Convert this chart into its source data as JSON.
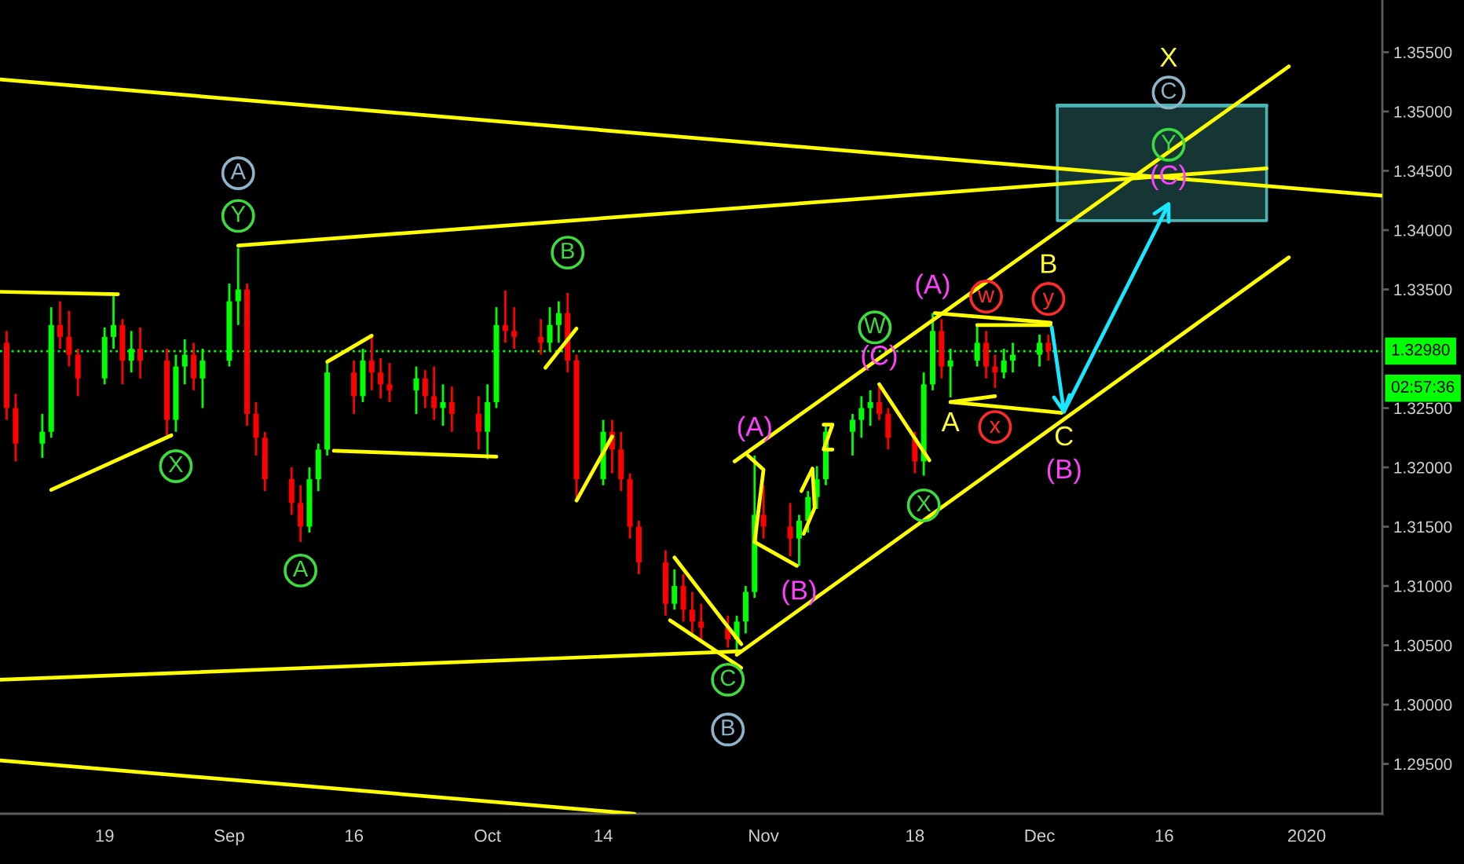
{
  "chart_data": {
    "type": "candlestick",
    "x": [
      "2019-08-08",
      "2019-08-09",
      "2019-08-12",
      "2019-08-13",
      "2019-08-14",
      "2019-08-15",
      "2019-08-16",
      "2019-08-19",
      "2019-08-20",
      "2019-08-21",
      "2019-08-22",
      "2019-08-23",
      "2019-08-26",
      "2019-08-27",
      "2019-08-28",
      "2019-08-29",
      "2019-08-30",
      "2019-09-02",
      "2019-09-03",
      "2019-09-04",
      "2019-09-05",
      "2019-09-06",
      "2019-09-09",
      "2019-09-10",
      "2019-09-11",
      "2019-09-12",
      "2019-09-13",
      "2019-09-16",
      "2019-09-17",
      "2019-09-18",
      "2019-09-19",
      "2019-09-20",
      "2019-09-23",
      "2019-09-24",
      "2019-09-25",
      "2019-09-26",
      "2019-09-27",
      "2019-09-30",
      "2019-10-01",
      "2019-10-02",
      "2019-10-03",
      "2019-10-04",
      "2019-10-07",
      "2019-10-08",
      "2019-10-09",
      "2019-10-10",
      "2019-10-11",
      "2019-10-14",
      "2019-10-15",
      "2019-10-16",
      "2019-10-17",
      "2019-10-18",
      "2019-10-21",
      "2019-10-22",
      "2019-10-23",
      "2019-10-24",
      "2019-10-25",
      "2019-10-28",
      "2019-10-29",
      "2019-10-30",
      "2019-10-31",
      "2019-11-01",
      "2019-11-04",
      "2019-11-05",
      "2019-11-06",
      "2019-11-07",
      "2019-11-08",
      "2019-11-11",
      "2019-11-12",
      "2019-11-13",
      "2019-11-14",
      "2019-11-15",
      "2019-11-18",
      "2019-11-19",
      "2019-11-20",
      "2019-11-21",
      "2019-11-22",
      "2019-11-25",
      "2019-11-26",
      "2019-11-27",
      "2019-11-28",
      "2019-11-29",
      "2019-12-02",
      "2019-12-03"
    ],
    "ohlc": [
      [
        1.3305,
        1.3315,
        1.324,
        1.325
      ],
      [
        1.325,
        1.3262,
        1.3205,
        1.322
      ],
      [
        1.322,
        1.3245,
        1.3208,
        1.323
      ],
      [
        1.323,
        1.3335,
        1.3225,
        1.332
      ],
      [
        1.332,
        1.334,
        1.33,
        1.331
      ],
      [
        1.331,
        1.3332,
        1.3285,
        1.3295
      ],
      [
        1.3295,
        1.33,
        1.326,
        1.3275
      ],
      [
        1.3275,
        1.3318,
        1.327,
        1.331
      ],
      [
        1.331,
        1.3345,
        1.33,
        1.332
      ],
      [
        1.332,
        1.3325,
        1.327,
        1.329
      ],
      [
        1.329,
        1.3315,
        1.328,
        1.33
      ],
      [
        1.33,
        1.3318,
        1.3275,
        1.329
      ],
      [
        1.329,
        1.33,
        1.3227,
        1.324
      ],
      [
        1.324,
        1.3295,
        1.323,
        1.3285
      ],
      [
        1.3285,
        1.3308,
        1.327,
        1.3295
      ],
      [
        1.3295,
        1.3305,
        1.3265,
        1.3275
      ],
      [
        1.3275,
        1.33,
        1.325,
        1.329
      ],
      [
        1.329,
        1.3355,
        1.3285,
        1.334
      ],
      [
        1.334,
        1.3385,
        1.332,
        1.335
      ],
      [
        1.335,
        1.3355,
        1.3235,
        1.3245
      ],
      [
        1.3245,
        1.3255,
        1.321,
        1.3225
      ],
      [
        1.3225,
        1.323,
        1.318,
        1.319
      ],
      [
        1.319,
        1.32,
        1.316,
        1.317
      ],
      [
        1.317,
        1.3185,
        1.3137,
        1.315
      ],
      [
        1.315,
        1.32,
        1.3145,
        1.319
      ],
      [
        1.319,
        1.322,
        1.318,
        1.3215
      ],
      [
        1.3215,
        1.329,
        1.321,
        1.328
      ],
      [
        1.328,
        1.329,
        1.3245,
        1.326
      ],
      [
        1.326,
        1.33,
        1.3255,
        1.329
      ],
      [
        1.329,
        1.331,
        1.3265,
        1.328
      ],
      [
        1.328,
        1.3292,
        1.3258,
        1.327
      ],
      [
        1.327,
        1.3288,
        1.3255,
        1.3265
      ],
      [
        1.3265,
        1.3285,
        1.3245,
        1.3275
      ],
      [
        1.3275,
        1.3282,
        1.325,
        1.326
      ],
      [
        1.326,
        1.3285,
        1.324,
        1.325
      ],
      [
        1.325,
        1.327,
        1.3235,
        1.3255
      ],
      [
        1.3255,
        1.3268,
        1.323,
        1.3245
      ],
      [
        1.3245,
        1.326,
        1.3215,
        1.323
      ],
      [
        1.323,
        1.327,
        1.3207,
        1.3255
      ],
      [
        1.3255,
        1.3335,
        1.325,
        1.332
      ],
      [
        1.332,
        1.3349,
        1.3305,
        1.3315
      ],
      [
        1.3315,
        1.3335,
        1.33,
        1.331
      ],
      [
        1.331,
        1.3325,
        1.3295,
        1.3305
      ],
      [
        1.3305,
        1.3335,
        1.3298,
        1.332
      ],
      [
        1.332,
        1.334,
        1.3305,
        1.333
      ],
      [
        1.333,
        1.3347,
        1.328,
        1.329
      ],
      [
        1.329,
        1.3295,
        1.3174,
        1.319
      ],
      [
        1.319,
        1.324,
        1.3185,
        1.323
      ],
      [
        1.323,
        1.324,
        1.3195,
        1.3215
      ],
      [
        1.3215,
        1.323,
        1.318,
        1.319
      ],
      [
        1.319,
        1.3195,
        1.314,
        1.315
      ],
      [
        1.315,
        1.3155,
        1.311,
        1.312
      ],
      [
        1.312,
        1.313,
        1.3075,
        1.3085
      ],
      [
        1.3085,
        1.3114,
        1.308,
        1.31
      ],
      [
        1.31,
        1.311,
        1.307,
        1.308
      ],
      [
        1.308,
        1.3095,
        1.306,
        1.307
      ],
      [
        1.307,
        1.3085,
        1.3055,
        1.3065
      ],
      [
        1.3065,
        1.3075,
        1.3048,
        1.3055
      ],
      [
        1.3055,
        1.3075,
        1.3045,
        1.307
      ],
      [
        1.307,
        1.31,
        1.306,
        1.3095
      ],
      [
        1.3095,
        1.321,
        1.309,
        1.316
      ],
      [
        1.316,
        1.3185,
        1.314,
        1.315
      ],
      [
        1.315,
        1.317,
        1.3125,
        1.314
      ],
      [
        1.314,
        1.316,
        1.3117,
        1.3155
      ],
      [
        1.3155,
        1.318,
        1.3145,
        1.3175
      ],
      [
        1.3175,
        1.3201,
        1.3165,
        1.319
      ],
      [
        1.319,
        1.3235,
        1.3185,
        1.323
      ],
      [
        1.323,
        1.3245,
        1.321,
        1.324
      ],
      [
        1.324,
        1.326,
        1.3225,
        1.325
      ],
      [
        1.325,
        1.3265,
        1.3235,
        1.3255
      ],
      [
        1.3255,
        1.327,
        1.324,
        1.3245
      ],
      [
        1.3245,
        1.325,
        1.3215,
        1.3225
      ],
      [
        1.3225,
        1.323,
        1.3195,
        1.3205
      ],
      [
        1.3205,
        1.328,
        1.3193,
        1.327
      ],
      [
        1.327,
        1.333,
        1.3265,
        1.3315
      ],
      [
        1.3315,
        1.3325,
        1.3275,
        1.3285
      ],
      [
        1.3285,
        1.33,
        1.3259,
        1.329
      ],
      [
        1.329,
        1.332,
        1.3285,
        1.3305
      ],
      [
        1.3305,
        1.3315,
        1.3275,
        1.3285
      ],
      [
        1.3285,
        1.3295,
        1.3267,
        1.328
      ],
      [
        1.328,
        1.33,
        1.3275,
        1.329
      ],
      [
        1.329,
        1.3305,
        1.328,
        1.3295
      ],
      [
        1.3295,
        1.3312,
        1.3285,
        1.3305
      ],
      [
        1.3305,
        1.3312,
        1.329,
        1.3298
      ]
    ],
    "colors": [
      "#ff0000",
      "#ff0000",
      "#00ff00",
      "#00ff00",
      "#ff0000",
      "#ff0000",
      "#ff0000",
      "#00ff00",
      "#00ff00",
      "#ff0000",
      "#00ff00",
      "#ff0000",
      "#ff0000",
      "#00ff00",
      "#00ff00",
      "#ff0000",
      "#00ff00",
      "#00ff00",
      "#00ff00",
      "#ff0000",
      "#ff0000",
      "#ff0000",
      "#ff0000",
      "#ff0000",
      "#00ff00",
      "#00ff00",
      "#00ff00",
      "#ff0000",
      "#00ff00",
      "#ff0000",
      "#ff0000",
      "#ff0000",
      "#00ff00",
      "#ff0000",
      "#ff0000",
      "#00ff00",
      "#ff0000",
      "#ff0000",
      "#00ff00",
      "#00ff00",
      "#ff0000",
      "#ff0000",
      "#ff0000",
      "#00ff00",
      "#00ff00",
      "#ff0000",
      "#ff0000",
      "#00ff00",
      "#ff0000",
      "#ff0000",
      "#ff0000",
      "#ff0000",
      "#ff0000",
      "#00ff00",
      "#ff0000",
      "#ff0000",
      "#ff0000",
      "#ff0000",
      "#00ff00",
      "#00ff00",
      "#00ff00",
      "#ff0000",
      "#ff0000",
      "#00ff00",
      "#00ff00",
      "#00ff00",
      "#00ff00",
      "#00ff00",
      "#00ff00",
      "#00ff00",
      "#ff0000",
      "#ff0000",
      "#ff0000",
      "#00ff00",
      "#00ff00",
      "#ff0000",
      "#00ff00",
      "#00ff00",
      "#ff0000",
      "#ff0000",
      "#00ff00",
      "#00ff00",
      "#00ff00",
      "#ff0000"
    ],
    "series": [
      {
        "type": "line",
        "color": "#48b4b4",
        "x": [
          "2019-12-04",
          "2019-12-27T12:00"
        ],
        "values": [
          1.3505,
          1.3505
        ],
        "lower": [
          1.3408,
          1.3408
        ],
        "upper": [
          1.3505,
          1.3505
        ]
      },
      {
        "type": "line",
        "color": "#ffff00",
        "x": [
          "2019-08-07T06:00",
          "2020-01-09T12:00"
        ],
        "values": [
          1.3527,
          1.3429
        ]
      },
      {
        "type": "line",
        "color": "#ffff00",
        "x": [
          "2019-09-03",
          "2019-12-27T12:00"
        ],
        "values": [
          1.3387,
          1.3452
        ]
      },
      {
        "type": "line",
        "color": "#ffff00",
        "x": [
          "2019-10-28T18:00",
          "2019-12-30"
        ],
        "values": [
          1.3205,
          1.3538
        ]
      },
      {
        "type": "line",
        "color": "#ffff00",
        "x": [
          "2019-10-29",
          "2019-12-30"
        ],
        "values": [
          1.3042,
          1.3377
        ]
      },
      {
        "type": "line",
        "color": "#ffff00",
        "x": [
          "2019-08-07T06:00",
          "2019-10-29T12:00"
        ],
        "values": [
          1.3021,
          1.3045
        ]
      },
      {
        "type": "line",
        "color": "#ffff00",
        "x": [
          "2019-08-07T06:00",
          "2019-10-17T12:00"
        ],
        "values": [
          1.2953,
          1.2908
        ]
      },
      {
        "type": "line",
        "color": "#ffff00",
        "x": [
          "2019-08-07T06:00",
          "2019-08-20T12:00"
        ],
        "values": [
          1.3348,
          1.3346
        ]
      },
      {
        "type": "line",
        "color": "#ffff00",
        "x": [
          "2019-08-13",
          "2019-08-26T12:00"
        ],
        "values": [
          1.3181,
          1.3227
        ]
      },
      {
        "type": "line",
        "color": "#ffff00",
        "x": [
          "2019-09-13",
          "2019-09-18"
        ],
        "values": [
          1.3289,
          1.3311
        ]
      },
      {
        "type": "line",
        "color": "#ffff00",
        "x": [
          "2019-09-13T18:00",
          "2019-10-02"
        ],
        "values": [
          1.3214,
          1.3209
        ]
      },
      {
        "type": "line",
        "color": "#ffff00",
        "x": [
          "2019-10-07T12:00",
          "2019-10-11"
        ],
        "values": [
          1.3284,
          1.3317
        ]
      },
      {
        "type": "line",
        "color": "#ffff00",
        "x": [
          "2019-10-11",
          "2019-10-15"
        ],
        "values": [
          1.3172,
          1.3226
        ]
      },
      {
        "type": "line",
        "color": "#ffff00",
        "x": [
          "2019-10-22",
          "2019-10-29T12:00"
        ],
        "values": [
          1.3124,
          1.3051
        ]
      },
      {
        "type": "line",
        "color": "#ffff00",
        "x": [
          "2019-10-21T12:00",
          "2019-10-29T12:00"
        ],
        "values": [
          1.3071,
          1.3031
        ]
      },
      {
        "type": "line",
        "color": "#ffff00",
        "x": [
          "2019-10-30T06:00",
          "2019-11-01",
          "2019-10-31",
          "2019-11-04T18:00"
        ],
        "values": [
          1.321,
          1.3198,
          1.3137,
          1.3117
        ]
      },
      {
        "type": "line",
        "color": "#ffff00",
        "x": [
          "2019-11-05T06:00",
          "2019-11-06T12:00",
          "2019-11-06T18:00",
          "2019-11-05T12:00"
        ],
        "values": [
          1.318,
          1.3199,
          1.3166,
          1.3144
        ]
      },
      {
        "type": "line",
        "color": "#ffff00",
        "x": [
          "2019-11-07T18:00",
          "2019-11-08T18:00",
          "2019-11-07T18:00",
          "2019-11-08T18:00"
        ],
        "values": [
          1.3236,
          1.3236,
          1.3215,
          1.3215
        ]
      },
      {
        "type": "line",
        "color": "#ffff00",
        "x": [
          "2019-11-14",
          "2019-11-19T15:00"
        ],
        "values": [
          1.327,
          1.3206
        ]
      },
      {
        "type": "line",
        "color": "#ffff00",
        "x": [
          "2019-11-20T06:00",
          "2019-12-03T06:00"
        ],
        "values": [
          1.333,
          1.3322
        ]
      },
      {
        "type": "line",
        "color": "#ffff00",
        "x": [
          "2019-11-25",
          "2019-12-03T06:00"
        ],
        "values": [
          1.332,
          1.332
        ]
      },
      {
        "type": "line",
        "color": "#ffff00",
        "x": [
          "2019-11-22",
          "2019-12-04T12:00"
        ],
        "values": [
          1.3255,
          1.3246
        ]
      },
      {
        "type": "line",
        "color": "#ffff00",
        "x": [
          "2019-11-22",
          "2019-11-27"
        ],
        "values": [
          1.3255,
          1.326
        ]
      },
      {
        "type": "line",
        "color": "#18e8ff",
        "x": [
          "2019-12-03T09:00",
          "2019-12-04T18:00",
          "2019-12-03T15:00",
          "2019-12-04T18:00",
          "2019-12-05T09:00"
        ],
        "values": [
          1.3318,
          1.3247,
          1.3259,
          1.3247,
          1.3261
        ]
      },
      {
        "type": "line",
        "color": "#18e8ff",
        "x": [
          "2019-12-04T18:00",
          "2019-12-16T12:00",
          "2019-12-16T12:00",
          "2019-12-16T12:00",
          "2019-12-14T22:00"
        ],
        "values": [
          1.3247,
          1.3422,
          1.3407,
          1.3422,
          1.3414
        ]
      },
      {
        "type": "scatter",
        "color": "#3ddc3d",
        "marker": "circle",
        "x": [
          "2019-08-27",
          "2019-09-03",
          "2019-09-10",
          "2019-10-10",
          "2019-10-28",
          "2019-11-13T12:00",
          "2019-11-19",
          "2019-12-16T12:00"
        ],
        "values": [
          1.3201,
          1.3412,
          1.3113,
          1.3381,
          1.3021,
          1.3318,
          1.3168,
          1.3472
        ],
        "value_labels": [
          "X",
          "Y",
          "A",
          "B",
          "C",
          "W",
          "X",
          "Y"
        ]
      },
      {
        "type": "scatter",
        "color": "#8fb3c9",
        "marker": "circle",
        "x": [
          "2019-09-03",
          "2019-10-28",
          "2019-12-16T12:00"
        ],
        "values": [
          1.3448,
          1.2979,
          1.3516
        ],
        "value_labels": [
          "A",
          "B",
          "C"
        ]
      },
      {
        "type": "scatter",
        "color": "#ff2a2a",
        "marker": "circle",
        "x": [
          "2019-11-26",
          "2019-11-27",
          "2019-12-03"
        ],
        "values": [
          1.3344,
          1.3234,
          1.3342
        ],
        "value_labels": [
          "w",
          "x",
          "y"
        ]
      }
    ],
    "ref_lines": [
      {
        "axis": "y",
        "value": 1.3298,
        "label": "1.32980",
        "color": "#00ff00",
        "line_style": "dotted"
      }
    ],
    "annotations": [
      "02:57:36",
      {
        "text": "(A)",
        "x": "2019-10-31",
        "y": 1.321
      },
      {
        "text": "(B)",
        "x": "2019-11-05",
        "y": 1.3117
      },
      {
        "text": "(C)",
        "x": "2019-11-14",
        "y": 1.327
      },
      {
        "text": "(A)",
        "x": "2019-11-20",
        "y": 1.333
      },
      {
        "text": "A",
        "x": "2019-11-22",
        "y": 1.3259
      },
      {
        "text": "B",
        "x": "2019-12-03",
        "y": 1.3312
      },
      {
        "text": "C",
        "x": "2019-12-04T18:00",
        "y": 1.3247
      },
      {
        "text": "(B)",
        "x": "2019-12-04T18:00",
        "y": 1.3247
      },
      {
        "text": "(C)",
        "x": "2019-12-16T12:00",
        "y": 1.3422
      },
      {
        "text": "X",
        "x": "2019-12-16T12:00",
        "y": 1.3505
      }
    ],
    "xlim": [
      "2019-08-07T06:00",
      "2020-01-09T12:00"
    ],
    "xticks": [
      {
        "value": "2019-08-19",
        "label": "19"
      },
      {
        "value": "2019-09-02",
        "label": "Sep"
      },
      {
        "value": "2019-09-16",
        "label": "16"
      },
      {
        "value": "2019-10-01",
        "label": "Oct"
      },
      {
        "value": "2019-10-14",
        "label": "14"
      },
      {
        "value": "2019-11-01",
        "label": "Nov"
      },
      {
        "value": "2019-11-18",
        "label": "18"
      },
      {
        "value": "2019-12-02",
        "label": "Dec"
      },
      {
        "value": "2019-12-16",
        "label": "16"
      },
      {
        "value": "2020-01-01",
        "label": "2020"
      }
    ],
    "ylim": [
      1.2908,
      1.3594
    ],
    "yticks": [
      {
        "value": 1.295,
        "label": "1.29500"
      },
      {
        "value": 1.3,
        "label": "1.30000"
      },
      {
        "value": 1.305,
        "label": "1.30500"
      },
      {
        "value": 1.31,
        "label": "1.31000"
      },
      {
        "value": 1.315,
        "label": "1.31500"
      },
      {
        "value": 1.32,
        "label": "1.32000"
      },
      {
        "value": 1.325,
        "label": "1.32500"
      },
      {
        "value": 1.335,
        "label": "1.33500"
      },
      {
        "value": 1.34,
        "label": "1.34000"
      },
      {
        "value": 1.345,
        "label": "1.34500"
      },
      {
        "value": 1.35,
        "label": "1.35000"
      },
      {
        "value": 1.355,
        "label": "1.35500"
      }
    ]
  }
}
